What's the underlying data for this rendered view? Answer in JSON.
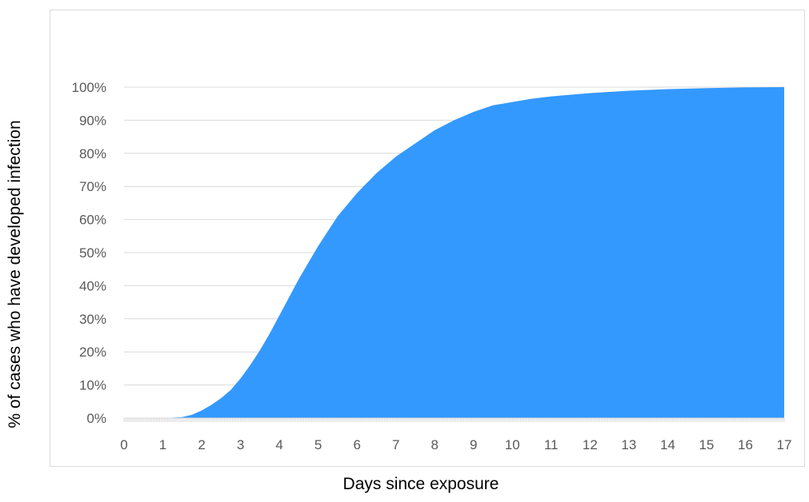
{
  "chart_data": {
    "type": "area",
    "title": "",
    "xlabel": "Days since exposure",
    "ylabel": "% of cases who have developed infection",
    "xlim": [
      0,
      17
    ],
    "ylim": [
      0,
      100
    ],
    "x_ticks": [
      "0",
      "1",
      "2",
      "3",
      "4",
      "5",
      "6",
      "7",
      "8",
      "9",
      "10",
      "11",
      "12",
      "13",
      "14",
      "15",
      "16",
      "17"
    ],
    "y_ticks": [
      "0%",
      "10%",
      "20%",
      "30%",
      "40%",
      "50%",
      "60%",
      "70%",
      "80%",
      "90%",
      "100%"
    ],
    "grid": true,
    "legend": "none",
    "series": [
      {
        "color": "#3399ff",
        "x": [
          0,
          1,
          1.5,
          1.75,
          2,
          2.25,
          2.5,
          2.75,
          3,
          3.25,
          3.5,
          3.75,
          4,
          4.25,
          4.5,
          4.75,
          5,
          5.25,
          5.5,
          5.75,
          6,
          6.5,
          7,
          7.5,
          8,
          8.5,
          9,
          9.5,
          10,
          10.5,
          11,
          11.5,
          12,
          13,
          14,
          15,
          16,
          17
        ],
        "values": [
          0,
          0,
          0.3,
          1,
          2.3,
          4,
          6,
          8.5,
          12,
          16,
          20.5,
          25.5,
          31,
          36.5,
          42,
          47,
          52,
          56.5,
          61,
          64.5,
          68,
          74,
          79,
          83,
          87,
          90,
          92.5,
          94.5,
          95.5,
          96.5,
          97.2,
          97.7,
          98.2,
          98.9,
          99.4,
          99.7,
          99.9,
          100
        ]
      }
    ]
  }
}
